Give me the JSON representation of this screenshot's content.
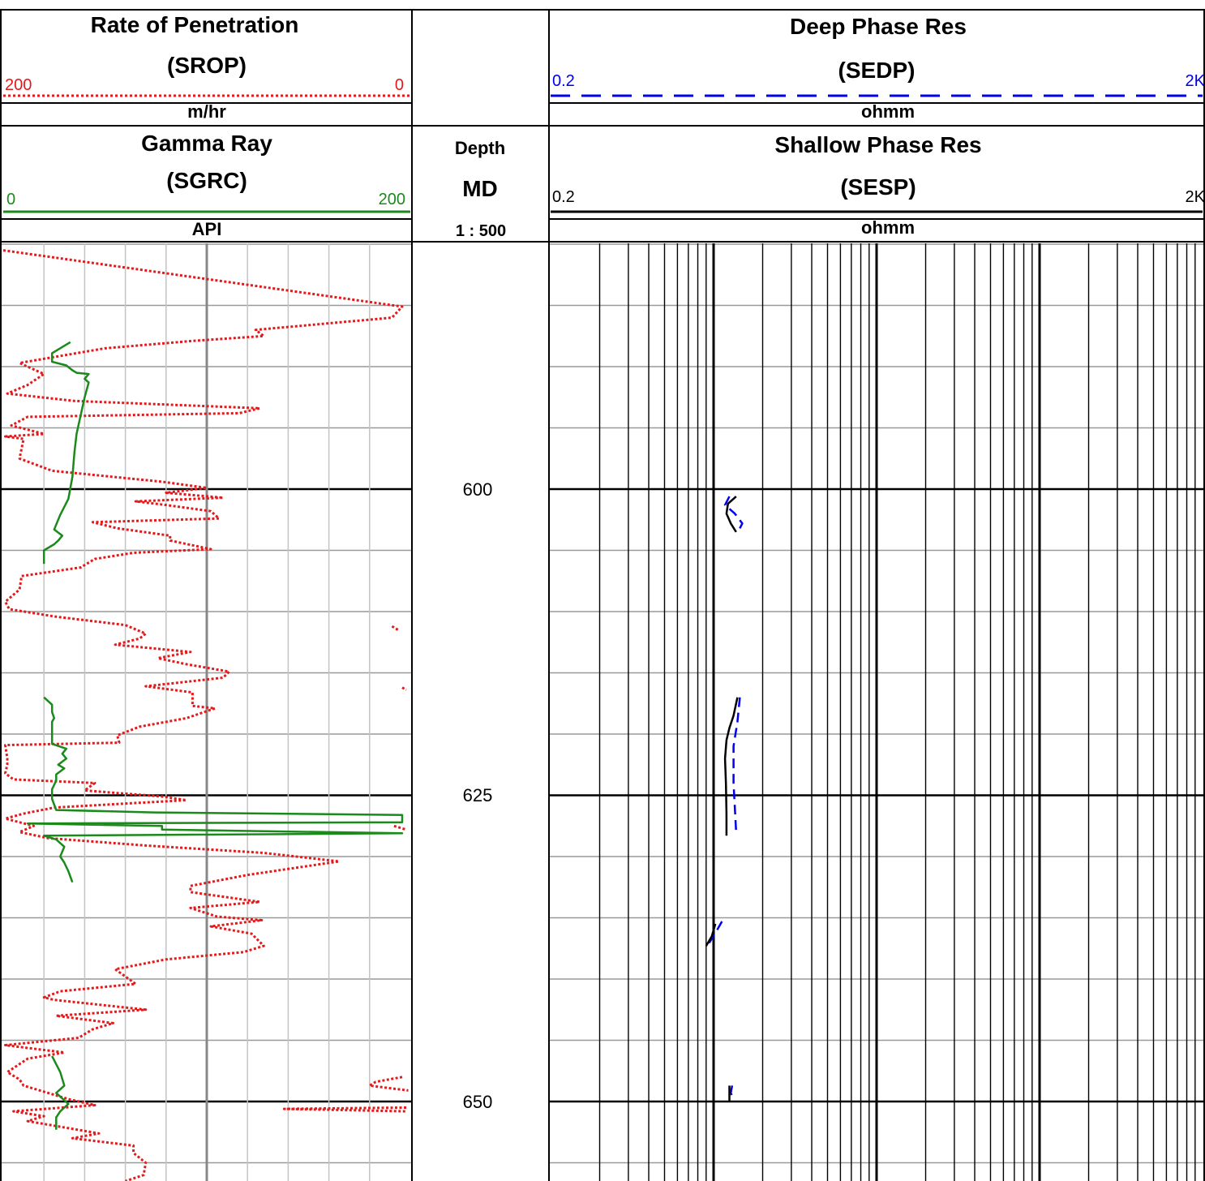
{
  "header": {
    "track1_top": {
      "title": "Rate of Penetration",
      "mnemonic": "(SROP)",
      "left": "200",
      "right": "0",
      "unit": "m/hr",
      "color": "#e31a1c"
    },
    "track1_bottom": {
      "title": "Gamma Ray",
      "mnemonic": "(SGRC)",
      "left": "0",
      "right": "200",
      "unit": "API",
      "color": "#1a8a1a"
    },
    "depth": {
      "title": "Depth",
      "mnemonic": "MD",
      "scale": "1 : 500"
    },
    "track2_top": {
      "title": "Deep Phase Res",
      "mnemonic": "(SEDP)",
      "left": "0.2",
      "right": "2K",
      "unit": "ohmm",
      "color": "#0000ee"
    },
    "track2_bottom": {
      "title": "Shallow Phase Res",
      "mnemonic": "(SESP)",
      "left": "0.2",
      "right": "2K",
      "unit": "ohmm",
      "color": "#000000"
    }
  },
  "chart_data": {
    "type": "line",
    "depth_labels": [
      "600",
      "625",
      "650"
    ],
    "depth_range": [
      580.5,
      656.5
    ],
    "series": [
      {
        "name": "SROP",
        "unit": "m/hr",
        "xlim": [
          200,
          0
        ],
        "color": "#e31a1c",
        "style": "dotted",
        "points": [
          [
            580.5,
            200
          ],
          [
            585.1,
            4
          ],
          [
            586.0,
            9
          ],
          [
            587.0,
            76
          ],
          [
            587.5,
            72
          ],
          [
            587.9,
            107
          ],
          [
            588.5,
            150
          ],
          [
            589.7,
            192
          ],
          [
            590.6,
            180
          ],
          [
            591.5,
            188
          ],
          [
            592.2,
            198
          ],
          [
            592.8,
            165
          ],
          [
            593.4,
            74
          ],
          [
            593.8,
            84
          ],
          [
            594.1,
            188
          ],
          [
            594.8,
            196
          ],
          [
            595.5,
            180
          ],
          [
            595.7,
            199
          ],
          [
            595.9,
            190
          ],
          [
            597.5,
            192
          ],
          [
            598.5,
            176
          ],
          [
            599.4,
            122
          ],
          [
            599.9,
            100
          ],
          [
            600.3,
            120
          ],
          [
            600.7,
            92
          ],
          [
            601.0,
            135
          ],
          [
            601.3,
            120
          ],
          [
            601.8,
            98
          ],
          [
            602.4,
            94
          ],
          [
            602.7,
            156
          ],
          [
            603.2,
            144
          ],
          [
            603.8,
            118
          ],
          [
            604.2,
            118
          ],
          [
            604.9,
            98
          ],
          [
            605.2,
            136
          ],
          [
            605.7,
            155
          ],
          [
            606.4,
            162
          ],
          [
            607.1,
            191
          ],
          [
            608.2,
            192
          ],
          [
            609.2,
            199
          ],
          [
            609.8,
            197
          ],
          [
            610.4,
            175
          ],
          [
            611.1,
            140
          ],
          [
            611.8,
            130
          ],
          [
            612.2,
            133
          ],
          [
            612.7,
            145
          ],
          [
            613.3,
            108
          ],
          [
            613.8,
            124
          ],
          [
            614.3,
            110
          ],
          [
            614.9,
            89
          ],
          [
            615.4,
            92
          ],
          [
            616.1,
            130
          ],
          [
            616.6,
            107
          ],
          [
            617.7,
            107
          ],
          [
            617.9,
            96
          ],
          [
            618.7,
            110
          ],
          [
            619.4,
            133
          ],
          [
            620.1,
            144
          ],
          [
            620.7,
            143
          ],
          [
            620.9,
            199
          ],
          [
            622.0,
            198
          ],
          [
            622.5,
            198
          ],
          [
            623.2,
            199
          ],
          [
            623.7,
            195
          ],
          [
            624.0,
            155
          ],
          [
            624.6,
            160
          ],
          [
            625.1,
            122
          ],
          [
            625.4,
            110
          ],
          [
            626.0,
            175
          ],
          [
            626.5,
            190
          ],
          [
            626.9,
            199
          ],
          [
            627.5,
            185
          ],
          [
            628.0,
            192
          ],
          [
            628.5,
            178
          ],
          [
            629.1,
            130
          ],
          [
            629.7,
            72
          ],
          [
            630.4,
            35
          ],
          [
            631.5,
            80
          ],
          [
            632.4,
            108
          ],
          [
            632.9,
            108
          ],
          [
            633.7,
            74
          ],
          [
            634.2,
            108
          ],
          [
            634.9,
            95
          ],
          [
            635.2,
            73
          ],
          [
            635.7,
            98
          ],
          [
            636.3,
            78
          ],
          [
            637.3,
            72
          ],
          [
            637.8,
            82
          ],
          [
            638.4,
            120
          ],
          [
            639.2,
            145
          ],
          [
            640.4,
            135
          ],
          [
            641.0,
            172
          ],
          [
            641.5,
            180
          ],
          [
            641.7,
            175
          ],
          [
            642.5,
            130
          ],
          [
            643.0,
            174
          ],
          [
            643.6,
            146
          ],
          [
            644.1,
            156
          ],
          [
            644.8,
            163
          ],
          [
            645.4,
            199
          ],
          [
            646.0,
            170
          ],
          [
            646.5,
            188
          ],
          [
            647.6,
            198
          ],
          [
            648.2,
            192
          ],
          [
            648.7,
            190
          ],
          [
            649.2,
            180
          ],
          [
            649.8,
            168
          ],
          [
            650.3,
            155
          ],
          [
            650.8,
            195
          ],
          [
            651.2,
            180
          ],
          [
            651.6,
            188
          ],
          [
            652.6,
            153
          ],
          [
            653.0,
            166
          ],
          [
            653.6,
            136
          ],
          [
            654.2,
            136
          ],
          [
            655.0,
            130
          ],
          [
            656.0,
            131
          ],
          [
            656.5,
            140
          ]
        ]
      },
      {
        "name": "SROP_extra",
        "unit": "m/hr",
        "xlim": [
          200,
          0
        ],
        "color": "#e31a1c",
        "style": "dotted",
        "segments": [
          [
            [
              611.2,
              9
            ],
            [
              611.5,
              6
            ]
          ],
          [
            [
              616.2,
              4
            ],
            [
              616.4,
              2
            ]
          ],
          [
            [
              627.5,
              8
            ],
            [
              627.8,
              2
            ]
          ],
          [
            [
              648.0,
              4
            ],
            [
              648.4,
              17
            ],
            [
              648.7,
              20
            ],
            [
              649.1,
              1
            ]
          ],
          [
            [
              650.5,
              2
            ],
            [
              650.6,
              62
            ],
            [
              650.8,
              2
            ]
          ]
        ]
      },
      {
        "name": "SGRC",
        "unit": "API",
        "xlim": [
          0,
          200
        ],
        "color": "#1a8a1a",
        "style": "solid",
        "segments": [
          [
            [
              588.0,
              33
            ],
            [
              588.9,
              24
            ],
            [
              589.6,
              24
            ],
            [
              589.9,
              31
            ],
            [
              590.3,
              34
            ],
            [
              590.5,
              36
            ],
            [
              590.6,
              42
            ],
            [
              591.0,
              40
            ],
            [
              591.3,
              42
            ],
            [
              592.5,
              40
            ],
            [
              594.0,
              38
            ],
            [
              595.5,
              36
            ],
            [
              597.0,
              35
            ],
            [
              599.0,
              34
            ],
            [
              600.8,
              32
            ],
            [
              602.1,
              28
            ],
            [
              603.3,
              25
            ],
            [
              603.8,
              29
            ],
            [
              604.2,
              27
            ],
            [
              604.5,
              25
            ],
            [
              605.0,
              20
            ],
            [
              605.5,
              20
            ],
            [
              606.1,
              20
            ]
          ],
          [
            [
              617.0,
              20
            ],
            [
              617.6,
              24
            ],
            [
              618.2,
              24
            ],
            [
              618.7,
              25
            ],
            [
              619.0,
              24
            ],
            [
              620.8,
              24
            ],
            [
              621.2,
              31
            ],
            [
              621.6,
              29
            ],
            [
              622.0,
              31
            ],
            [
              622.5,
              27
            ],
            [
              622.8,
              30
            ],
            [
              623.3,
              26
            ],
            [
              623.8,
              26
            ],
            [
              624.5,
              24
            ],
            [
              625.3,
              24
            ],
            [
              626.2,
              26
            ],
            [
              626.4,
              74
            ],
            [
              626.6,
              196
            ],
            [
              627.2,
              196
            ],
            [
              627.3,
              12
            ],
            [
              627.5,
              78
            ],
            [
              627.8,
              78
            ],
            [
              628.1,
              196
            ],
            [
              628.3,
              20
            ],
            [
              628.6,
              26
            ],
            [
              629.2,
              30
            ],
            [
              630.0,
              28
            ],
            [
              630.5,
              30
            ],
            [
              631.2,
              32
            ],
            [
              632.1,
              34
            ]
          ],
          [
            [
              646.3,
              24
            ],
            [
              647.6,
              28
            ],
            [
              648.7,
              30
            ],
            [
              649.3,
              26
            ],
            [
              650.2,
              32
            ],
            [
              650.8,
              28
            ],
            [
              651.3,
              26
            ],
            [
              652.3,
              26
            ]
          ]
        ]
      },
      {
        "name": "SEDP",
        "unit": "ohmm",
        "xlim": [
          0.2,
          2000
        ],
        "scale": "log",
        "color": "#0000ee",
        "style": "dashed",
        "segments": [
          [
            [
              600.6,
              2.5
            ],
            [
              601.3,
              2.35
            ],
            [
              602.0,
              2.7
            ],
            [
              602.8,
              3.0
            ],
            [
              603.4,
              2.85
            ]
          ],
          [
            [
              617.0,
              2.9
            ],
            [
              619.0,
              2.8
            ],
            [
              621.0,
              2.65
            ],
            [
              624.0,
              2.65
            ],
            [
              628.0,
              2.75
            ]
          ],
          [
            [
              635.3,
              2.25
            ],
            [
              636.0,
              2.1
            ],
            [
              637.2,
              1.85
            ]
          ],
          [
            [
              648.7,
              2.6
            ],
            [
              649.3,
              2.55
            ],
            [
              649.8,
              2.65
            ]
          ]
        ]
      },
      {
        "name": "SESP",
        "unit": "ohmm",
        "xlim": [
          0.2,
          2000
        ],
        "scale": "log",
        "color": "#000000",
        "style": "solid",
        "segments": [
          [
            [
              600.6,
              2.75
            ],
            [
              601.2,
              2.45
            ],
            [
              602.0,
              2.4
            ],
            [
              602.8,
              2.55
            ],
            [
              603.5,
              2.75
            ]
          ],
          [
            [
              617.0,
              2.8
            ],
            [
              618.5,
              2.65
            ],
            [
              619.5,
              2.5
            ],
            [
              620.5,
              2.4
            ],
            [
              622.0,
              2.35
            ],
            [
              624.0,
              2.38
            ],
            [
              626.5,
              2.4
            ],
            [
              628.3,
              2.4
            ]
          ],
          [
            [
              635.5,
              2.05
            ],
            [
              636.5,
              1.95
            ],
            [
              637.3,
              1.8
            ]
          ],
          [
            [
              648.7,
              2.5
            ],
            [
              650.0,
              2.5
            ]
          ]
        ]
      }
    ]
  }
}
